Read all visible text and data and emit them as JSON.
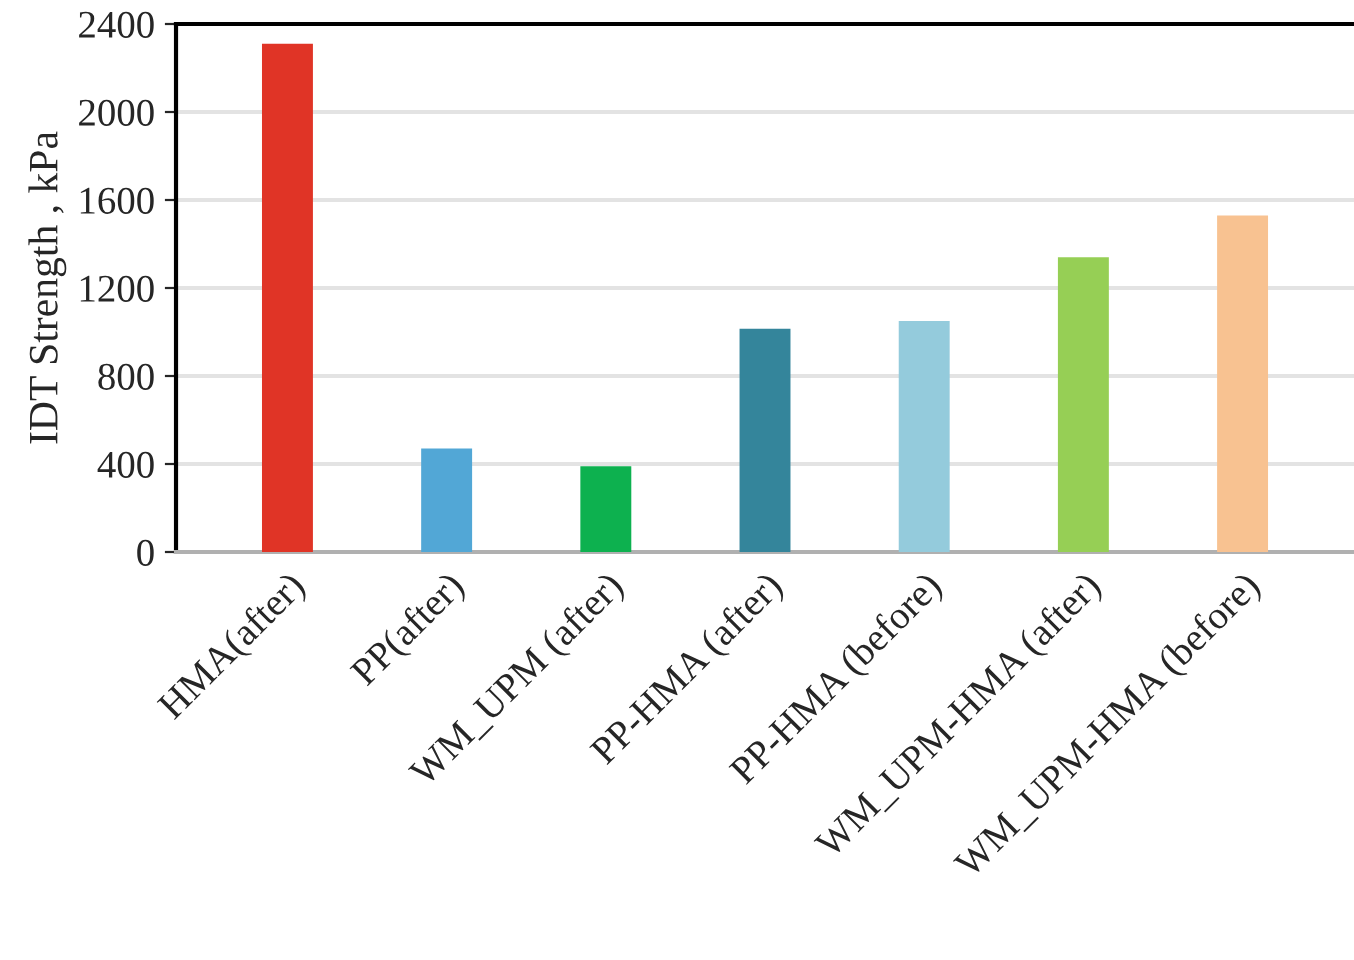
{
  "chart_data": {
    "type": "bar",
    "ylabel": "IDT Strength , kPa",
    "categories": [
      "HMA(after)",
      "PP(after)",
      "WM_UPM (after)",
      "PP-HMA (after)",
      "PP-HMA (before)",
      "WM_UPM-HMA (after)",
      "WM_UPM-HMA (before)"
    ],
    "values": [
      2310,
      470,
      390,
      1015,
      1050,
      1340,
      1530
    ],
    "colors": [
      "#e03426",
      "#52a7d6",
      "#0db14f",
      "#34859b",
      "#94cbdc",
      "#96cf55",
      "#f8c291"
    ],
    "ylim": [
      0,
      2400
    ],
    "yticks": [
      0,
      400,
      800,
      1200,
      1600,
      2000,
      2400
    ],
    "grid": "y",
    "legend": false
  }
}
